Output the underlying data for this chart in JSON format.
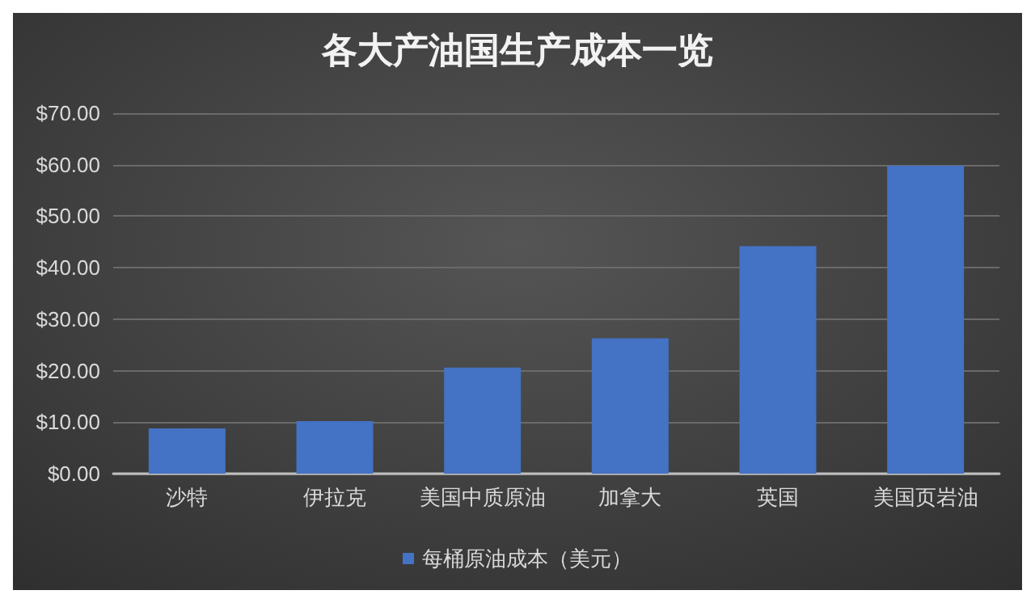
{
  "chart_data": {
    "type": "bar",
    "title": "各大产油国生产成本一览",
    "categories": [
      "沙特",
      "伊拉克",
      "美国中质原油",
      "加拿大",
      "英国",
      "美国页岩油"
    ],
    "series": [
      {
        "name": "每桶原油成本（美元）",
        "color": "#4472c4",
        "values": [
          8.8,
          10.2,
          20.6,
          26.3,
          44.2,
          59.8
        ]
      }
    ],
    "ylim": [
      0,
      70
    ],
    "yticks": [
      {
        "value": 0,
        "label": "$0.00"
      },
      {
        "value": 10,
        "label": "$10.00"
      },
      {
        "value": 20,
        "label": "$20.00"
      },
      {
        "value": 30,
        "label": "$30.00"
      },
      {
        "value": 40,
        "label": "$40.00"
      },
      {
        "value": 50,
        "label": "$50.00"
      },
      {
        "value": 60,
        "label": "$60.00"
      },
      {
        "value": 70,
        "label": "$70.00"
      }
    ],
    "grid": "y",
    "legend": "bottom"
  }
}
